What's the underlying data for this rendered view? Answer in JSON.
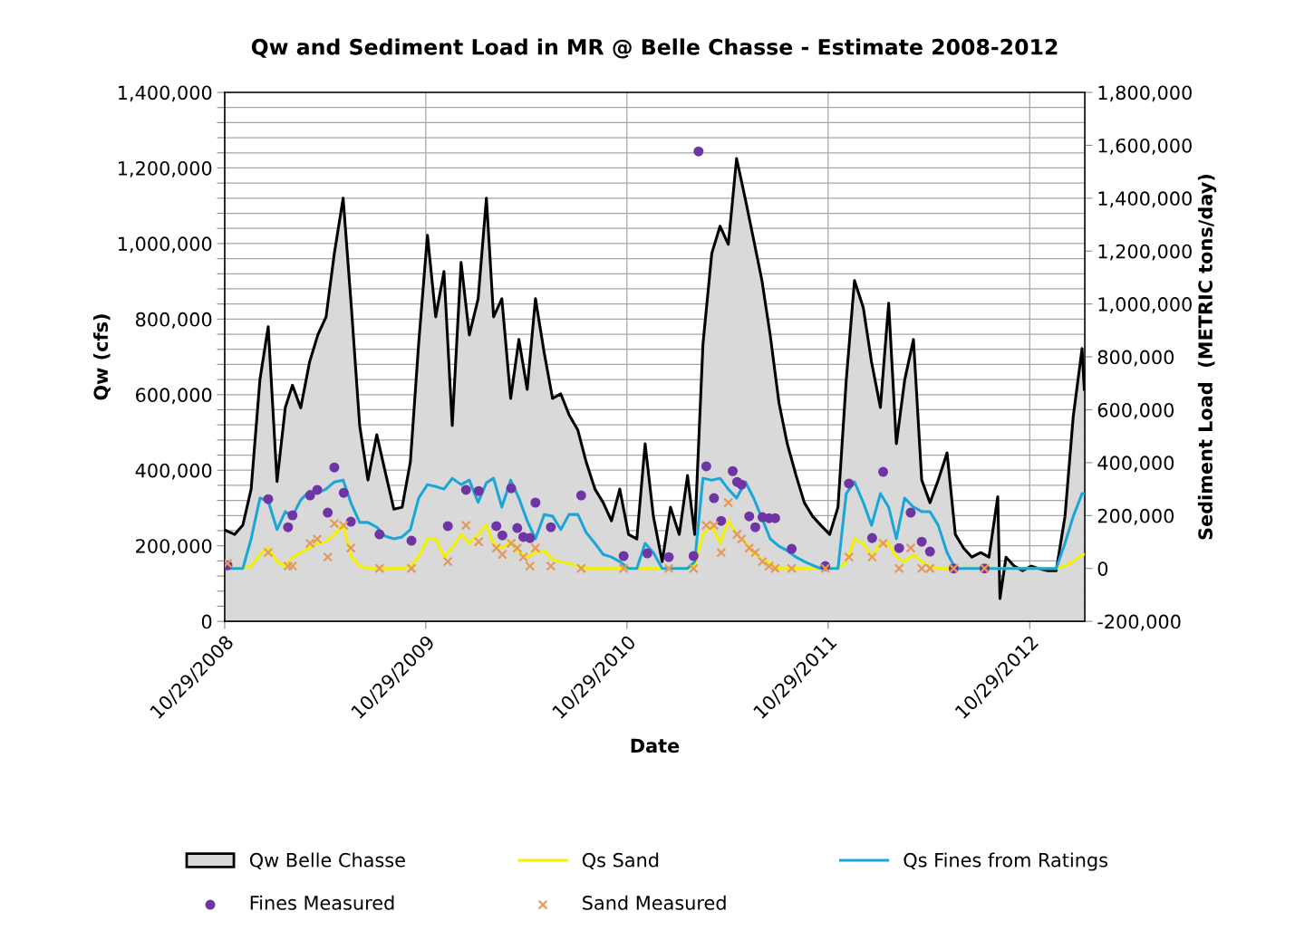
{
  "chart_data": {
    "type": "line",
    "title": "Qw and Sediment Load in MR @ Belle Chasse - Estimate 2008-2012",
    "xlabel": "Date",
    "ylabel": "Qw (cfs)",
    "y2label": "Sediment Load  (METRIC tons/day)",
    "x": [
      "2008-10-29",
      "2008-11-01",
      "2008-11-16",
      "2008-12-01",
      "2008-12-16",
      "2009-01-01",
      "2009-01-16",
      "2009-02-01",
      "2009-02-16",
      "2009-03-01",
      "2009-03-16",
      "2009-04-01",
      "2009-04-16",
      "2009-05-01",
      "2009-05-16",
      "2009-06-01",
      "2009-06-16",
      "2009-07-01",
      "2009-07-16",
      "2009-08-01",
      "2009-08-16",
      "2009-09-01",
      "2009-09-16",
      "2009-10-01",
      "2009-10-16",
      "2009-11-01",
      "2009-11-16",
      "2009-12-01",
      "2009-12-16",
      "2010-01-01",
      "2010-01-16",
      "2010-02-01",
      "2010-02-16",
      "2010-03-01",
      "2010-03-16",
      "2010-04-01",
      "2010-04-16",
      "2010-05-01",
      "2010-05-16",
      "2010-06-01",
      "2010-06-16",
      "2010-07-01",
      "2010-07-16",
      "2010-08-01",
      "2010-08-16",
      "2010-09-01",
      "2010-09-16",
      "2010-10-01",
      "2010-10-16",
      "2010-11-01",
      "2010-11-16",
      "2010-12-01",
      "2010-12-16",
      "2011-01-01",
      "2011-01-16",
      "2011-02-01",
      "2011-02-16",
      "2011-03-01",
      "2011-03-16",
      "2011-04-01",
      "2011-04-16",
      "2011-05-01",
      "2011-05-16",
      "2011-06-01",
      "2011-06-16",
      "2011-07-01",
      "2011-07-16",
      "2011-08-01",
      "2011-08-16",
      "2011-09-01",
      "2011-09-16",
      "2011-10-01",
      "2011-10-16",
      "2011-11-01",
      "2011-11-16",
      "2011-12-01",
      "2011-12-16",
      "2012-01-01",
      "2012-01-16",
      "2012-02-01",
      "2012-02-16",
      "2012-03-01",
      "2012-03-16",
      "2012-04-01",
      "2012-04-16",
      "2012-05-01",
      "2012-05-16",
      "2012-06-01",
      "2012-06-16",
      "2012-07-01",
      "2012-07-16",
      "2012-08-01",
      "2012-08-16",
      "2012-09-01",
      "2012-09-05",
      "2012-09-16",
      "2012-10-01",
      "2012-10-16",
      "2012-11-01",
      "2012-11-16",
      "2012-12-01",
      "2012-12-16",
      "2013-01-01",
      "2013-01-16",
      "2013-02-01",
      "2013-02-05"
    ],
    "xlim": [
      "2008-10-29",
      "2013-02-06"
    ],
    "xticks": [
      {
        "value": "2008-10-29",
        "label": "10/29/2008"
      },
      {
        "value": "2009-10-29",
        "label": "10/29/2009"
      },
      {
        "value": "2010-10-29",
        "label": "10/29/2010"
      },
      {
        "value": "2011-10-29",
        "label": "10/29/2011"
      },
      {
        "value": "2012-10-29",
        "label": "10/29/2012"
      }
    ],
    "ylim": [
      0,
      1400000
    ],
    "yticks": [
      0,
      {
        "value": 40000,
        "label": null
      },
      {
        "value": 80000,
        "label": null
      },
      {
        "value": 120000,
        "label": null
      },
      {
        "value": 160000,
        "label": null
      },
      {
        "value": 200000,
        "label": "200,000"
      },
      {
        "value": 240000,
        "label": null
      },
      {
        "value": 280000,
        "label": null
      },
      {
        "value": 320000,
        "label": null
      },
      {
        "value": 360000,
        "label": null
      },
      {
        "value": 400000,
        "label": "400,000"
      },
      {
        "value": 440000,
        "label": null
      },
      {
        "value": 480000,
        "label": null
      },
      {
        "value": 520000,
        "label": null
      },
      {
        "value": 560000,
        "label": null
      },
      {
        "value": 600000,
        "label": "600,000"
      },
      {
        "value": 640000,
        "label": null
      },
      {
        "value": 680000,
        "label": null
      },
      {
        "value": 720000,
        "label": null
      },
      {
        "value": 760000,
        "label": null
      },
      {
        "value": 800000,
        "label": "800,000"
      },
      {
        "value": 840000,
        "label": null
      },
      {
        "value": 880000,
        "label": null
      },
      {
        "value": 920000,
        "label": null
      },
      {
        "value": 960000,
        "label": null
      },
      {
        "value": 1000000,
        "label": "1,000,000"
      },
      {
        "value": 1040000,
        "label": null
      },
      {
        "value": 1080000,
        "label": null
      },
      {
        "value": 1120000,
        "label": null
      },
      {
        "value": 1160000,
        "label": null
      },
      {
        "value": 1200000,
        "label": "1,200,000"
      },
      {
        "value": 1240000,
        "label": null
      },
      {
        "value": 1280000,
        "label": null
      },
      {
        "value": 1320000,
        "label": null
      },
      {
        "value": 1360000,
        "label": null
      },
      {
        "value": 1400000,
        "label": "1,400,000"
      }
    ],
    "y2lim": [
      -200000,
      1800000
    ],
    "y2ticks": [
      {
        "value": -200000,
        "label": "-200,000"
      },
      0,
      {
        "value": 200000,
        "label": "200,000"
      },
      {
        "value": 400000,
        "label": "400,000"
      },
      {
        "value": 600000,
        "label": "600,000"
      },
      {
        "value": 800000,
        "label": "800,000"
      },
      {
        "value": 1000000,
        "label": "1,000,000"
      },
      {
        "value": 1200000,
        "label": "1,200,000"
      },
      {
        "value": 1400000,
        "label": "1,400,000"
      },
      {
        "value": 1600000,
        "label": "1,600,000"
      },
      {
        "value": 1800000,
        "label": "1,800,000"
      }
    ],
    "grid": true,
    "legend": "bottom",
    "series": [
      {
        "name": "Qw Belle Chasse",
        "type": "area",
        "color": "#d9d9d9",
        "values": [
          242000,
          240000,
          230000,
          255000,
          350000,
          640000,
          780000,
          370000,
          566000,
          625000,
          565000,
          686000,
          758000,
          806000,
          974000,
          1120000,
          830000,
          518000,
          374000,
          494000,
          398000,
          297000,
          302000,
          422000,
          734000,
          1022000,
          806000,
          926000,
          518000,
          950000,
          758000,
          854000,
          1120000,
          806000,
          854000,
          590000,
          746000,
          614000,
          854000,
          710000,
          590000,
          602000,
          547000,
          506000,
          422000,
          350000,
          314000,
          266000,
          350000,
          230000,
          218000,
          470000,
          278000,
          158000,
          302000,
          230000,
          386000,
          230000,
          734000,
          974000,
          1046000,
          998000,
          1225000,
          1117000,
          1010000,
          902000,
          758000,
          578000,
          470000,
          386000,
          314000,
          278000,
          254000,
          230000,
          302000,
          638000,
          902000,
          830000,
          686000,
          566000,
          842000,
          470000,
          638000,
          746000,
          374000,
          314000,
          374000,
          446000,
          230000,
          194000,
          170000,
          182000,
          170000,
          330000,
          60000,
          170000,
          146000,
          134000,
          146000,
          139000,
          134000,
          134000,
          278000,
          542000,
          722000,
          614000
        ]
      },
      {
        "name": "Qs Sand",
        "axis": "y2",
        "color": "#f2f200",
        "values": [
          null,
          null,
          0,
          0,
          9000,
          53000,
          77000,
          26000,
          9000,
          43000,
          60000,
          77000,
          95000,
          101000,
          129000,
          163000,
          43000,
          9000,
          0,
          0,
          0,
          0,
          0,
          9000,
          43000,
          112000,
          112000,
          43000,
          77000,
          129000,
          95000,
          129000,
          163000,
          95000,
          77000,
          101000,
          60000,
          43000,
          60000,
          67000,
          33000,
          26000,
          19000,
          9000,
          0,
          0,
          0,
          0,
          0,
          0,
          0,
          0,
          0,
          0,
          0,
          0,
          0,
          9000,
          129000,
          163000,
          95000,
          180000,
          129000,
          95000,
          60000,
          33000,
          19000,
          0,
          0,
          0,
          0,
          0,
          0,
          0,
          0,
          26000,
          112000,
          95000,
          43000,
          95000,
          95000,
          43000,
          26000,
          53000,
          26000,
          9000,
          0,
          0,
          0,
          0,
          0,
          0,
          0,
          0,
          0,
          0,
          0,
          0,
          0,
          0,
          0,
          0,
          9000,
          26000,
          53000,
          53000
        ]
      },
      {
        "name": "Qs Fines from Ratings",
        "axis": "y2",
        "color": "#1ba6d8",
        "values": [
          0,
          0,
          0,
          0,
          112000,
          266000,
          255000,
          147000,
          215000,
          198000,
          259000,
          293000,
          286000,
          300000,
          327000,
          334000,
          243000,
          174000,
          174000,
          156000,
          122000,
          112000,
          119000,
          147000,
          266000,
          317000,
          310000,
          300000,
          341000,
          317000,
          334000,
          250000,
          324000,
          341000,
          232000,
          334000,
          266000,
          180000,
          112000,
          204000,
          198000,
          147000,
          204000,
          204000,
          136000,
          95000,
          53000,
          43000,
          26000,
          0,
          0,
          95000,
          60000,
          0,
          0,
          0,
          0,
          26000,
          341000,
          334000,
          341000,
          300000,
          266000,
          327000,
          266000,
          190000,
          112000,
          84000,
          67000,
          43000,
          26000,
          12000,
          0,
          0,
          0,
          283000,
          327000,
          249000,
          163000,
          283000,
          232000,
          112000,
          266000,
          232000,
          215000,
          215000,
          163000,
          60000,
          0,
          0,
          0,
          0,
          0,
          0,
          0,
          0,
          0,
          0,
          0,
          0,
          0,
          0,
          95000,
          197000,
          283000,
          283000
        ]
      },
      {
        "name": "Fines Measured",
        "type": "scatter",
        "axis": "y2",
        "color": "#6f35a5",
        "marker": "circle",
        "x": [
          "2008-11-03",
          "2009-01-16",
          "2009-02-21",
          "2009-03-01",
          "2009-04-02",
          "2009-04-15",
          "2009-05-04",
          "2009-05-16",
          "2009-06-02",
          "2009-06-15",
          "2009-08-06",
          "2009-10-03",
          "2009-12-08",
          "2010-01-10",
          "2010-02-02",
          "2010-03-06",
          "2010-03-17",
          "2010-04-02",
          "2010-04-13",
          "2010-04-24",
          "2010-05-06",
          "2010-05-16",
          "2010-06-13",
          "2010-08-07",
          "2010-10-23",
          "2010-12-05",
          "2011-01-13",
          "2011-02-27",
          "2011-03-08",
          "2011-03-22",
          "2011-04-05",
          "2011-04-18",
          "2011-05-09",
          "2011-05-17",
          "2011-05-25",
          "2011-06-08",
          "2011-06-19",
          "2011-07-02",
          "2011-07-14",
          "2011-07-25",
          "2011-08-24",
          "2011-10-24",
          "2011-12-06",
          "2012-01-17",
          "2012-02-06",
          "2012-03-06",
          "2012-03-27",
          "2012-04-16",
          "2012-05-01",
          "2012-06-13",
          "2012-08-08"
        ],
        "values": [
          12000,
          262000,
          156000,
          201000,
          276000,
          297000,
          211000,
          382000,
          286000,
          177000,
          129000,
          105000,
          160000,
          297000,
          293000,
          160000,
          125000,
          303000,
          153000,
          119000,
          115000,
          249000,
          156000,
          276000,
          47000,
          57000,
          43000,
          47000,
          1577000,
          386000,
          266000,
          180000,
          368000,
          327000,
          317000,
          197000,
          156000,
          194000,
          190000,
          190000,
          74000,
          9000,
          321000,
          115000,
          365000,
          77000,
          211000,
          101000,
          64000,
          0,
          0
        ]
      },
      {
        "name": "Sand Measured",
        "type": "scatter",
        "axis": "y2",
        "color": "#e39a5c",
        "marker": "cross",
        "x": [
          "2008-11-03",
          "2009-01-16",
          "2009-02-21",
          "2009-03-01",
          "2009-04-02",
          "2009-04-15",
          "2009-05-04",
          "2009-05-16",
          "2009-06-02",
          "2009-06-15",
          "2009-08-06",
          "2009-10-03",
          "2009-12-08",
          "2010-01-10",
          "2010-02-02",
          "2010-03-06",
          "2010-03-17",
          "2010-04-02",
          "2010-04-13",
          "2010-04-24",
          "2010-05-06",
          "2010-05-16",
          "2010-06-13",
          "2010-08-07",
          "2010-10-23",
          "2011-01-13",
          "2011-02-27",
          "2011-03-22",
          "2011-04-05",
          "2011-04-18",
          "2011-05-01",
          "2011-05-17",
          "2011-05-25",
          "2011-06-08",
          "2011-06-19",
          "2011-07-02",
          "2011-07-14",
          "2011-07-25",
          "2011-08-24",
          "2011-10-24",
          "2011-12-06",
          "2012-01-17",
          "2012-02-06",
          "2012-03-06",
          "2012-03-27",
          "2012-04-16",
          "2012-05-01",
          "2012-06-13",
          "2012-08-08"
        ],
        "values": [
          19000,
          60000,
          9000,
          9000,
          95000,
          111000,
          43000,
          170000,
          163000,
          77000,
          0,
          0,
          26000,
          163000,
          101000,
          77000,
          53000,
          95000,
          77000,
          43000,
          9000,
          77000,
          9000,
          0,
          0,
          0,
          0,
          163000,
          163000,
          60000,
          249000,
          129000,
          111000,
          77000,
          60000,
          26000,
          9000,
          0,
          0,
          0,
          43000,
          43000,
          95000,
          0,
          77000,
          0,
          0,
          0,
          0
        ]
      }
    ]
  }
}
